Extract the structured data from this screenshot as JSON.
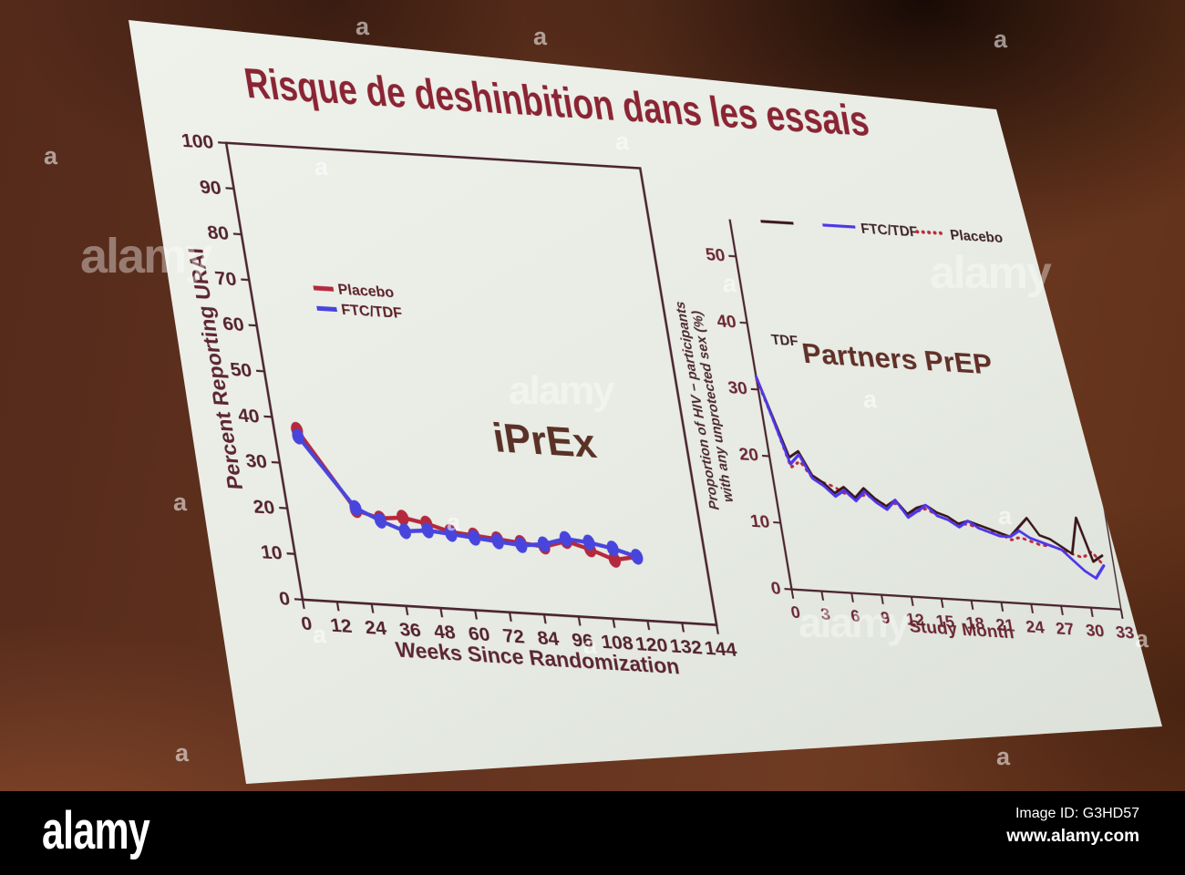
{
  "watermark": {
    "small": "a",
    "large": "alamy"
  },
  "footer": {
    "logo": "alamy",
    "image_id": "Image ID: G3HD57",
    "url": "www.alamy.com"
  },
  "slide": {
    "title": "Risque de deshinbition dans les essais",
    "title_color": "#8a2433",
    "background_color": "#e9ece5"
  },
  "chart_data": [
    {
      "type": "line",
      "title": "iPrEx",
      "xlabel": "Weeks Since Randomization",
      "ylabel": "Percent Reporting URAI",
      "xlim": [
        0,
        144
      ],
      "ylim": [
        0,
        100
      ],
      "xticks": [
        0,
        12,
        24,
        36,
        48,
        60,
        72,
        84,
        96,
        108,
        120,
        132,
        144
      ],
      "yticks": [
        0,
        10,
        20,
        30,
        40,
        50,
        60,
        70,
        80,
        90,
        100
      ],
      "grid": false,
      "legend_position": "inside-upper-left",
      "series": [
        {
          "name": "Placebo",
          "color": "#b5293d",
          "line": "solid",
          "marker": "ellipse",
          "x": [
            8,
            24,
            32,
            40,
            48,
            56,
            64,
            72,
            80,
            88,
            96,
            104,
            112,
            120
          ],
          "y": [
            37.5,
            20.5,
            19,
            19.5,
            18.5,
            17,
            16.5,
            16,
            15.5,
            15,
            16.5,
            15,
            13,
            14
          ]
        },
        {
          "name": "FTC/TDF",
          "color": "#4845dd",
          "line": "solid",
          "marker": "ellipse",
          "x": [
            8,
            24,
            32,
            40,
            48,
            56,
            64,
            72,
            80,
            88,
            96,
            104,
            112,
            120
          ],
          "y": [
            36,
            21,
            18.5,
            16.5,
            17,
            16.5,
            16,
            15.5,
            15,
            15.5,
            17,
            16.5,
            15.5,
            14
          ]
        }
      ]
    },
    {
      "type": "line",
      "title": "Partners PrEP",
      "xlabel": "Study Month",
      "ylabel": "Proportion of HIV − participants with any unprotected sex (%)",
      "ylabel_lines": [
        "Proportion of HIV − participants",
        "with any unprotected sex (%)"
      ],
      "annotation": "TDF",
      "xlim": [
        0,
        33
      ],
      "ylim": [
        0,
        55
      ],
      "xticks": [
        0,
        3,
        6,
        9,
        12,
        15,
        18,
        21,
        24,
        27,
        30,
        33
      ],
      "yticks": [
        0,
        10,
        20,
        30,
        40,
        50
      ],
      "grid": false,
      "legend_position": "top",
      "legend": [
        {
          "label": "",
          "style": "solid"
        },
        {
          "label": "FTC/TDF",
          "style": "solid"
        },
        {
          "label": "Placebo",
          "style": "dotted"
        }
      ],
      "series": [
        {
          "name": "TDF",
          "color": "#3a151a",
          "line": "solid",
          "x": [
            0,
            1,
            2,
            3,
            4,
            5,
            6,
            7,
            8,
            9,
            10,
            11,
            12,
            13,
            14,
            15,
            16,
            17,
            18,
            19,
            20,
            21,
            22,
            23,
            24,
            25,
            26,
            27,
            28,
            29,
            30,
            31,
            32
          ],
          "y": [
            32,
            26,
            20,
            21,
            17.5,
            16.5,
            15,
            16,
            14.5,
            16,
            14.5,
            13.5,
            14.5,
            12.5,
            13.5,
            14,
            13,
            12.5,
            11.5,
            12,
            11.5,
            11,
            10.5,
            10,
            11.5,
            13,
            10.5,
            10,
            9,
            8,
            13.5,
            7,
            8
          ]
        },
        {
          "name": "FTC/TDF",
          "color": "#4d36ea",
          "line": "solid",
          "x": [
            0,
            1,
            2,
            3,
            4,
            5,
            6,
            7,
            8,
            9,
            10,
            11,
            12,
            13,
            14,
            15,
            16,
            17,
            18,
            19,
            20,
            21,
            22,
            23,
            24,
            25,
            26,
            27,
            28,
            29,
            30,
            31,
            32
          ],
          "y": [
            32,
            25.5,
            19,
            20.5,
            17,
            16,
            14.5,
            15.5,
            14,
            15.5,
            14,
            13,
            14.5,
            12,
            13,
            14,
            12.5,
            12,
            11,
            12,
            11,
            10.5,
            10,
            10,
            11,
            10,
            9.5,
            9,
            8.5,
            7,
            5.5,
            4.5,
            6.5
          ]
        },
        {
          "name": "Placebo",
          "color": "#bb2a3a",
          "line": "dotted",
          "x": [
            0,
            1,
            2,
            3,
            4,
            5,
            6,
            7,
            8,
            9,
            10,
            11,
            12,
            13,
            14,
            15,
            16,
            17,
            18,
            19,
            20,
            21,
            22,
            23,
            24,
            25,
            26,
            27,
            28,
            29,
            30,
            31,
            32
          ],
          "y": [
            31.5,
            25.5,
            18.5,
            19.5,
            17,
            16.5,
            16,
            15,
            14.5,
            15,
            14.5,
            13.5,
            14,
            12.5,
            13,
            13.5,
            12.5,
            12,
            11.5,
            11.5,
            11,
            10.5,
            10.5,
            9.5,
            10,
            9.5,
            9,
            9,
            8.5,
            8,
            7.5,
            8.5,
            6.5
          ]
        }
      ]
    }
  ]
}
